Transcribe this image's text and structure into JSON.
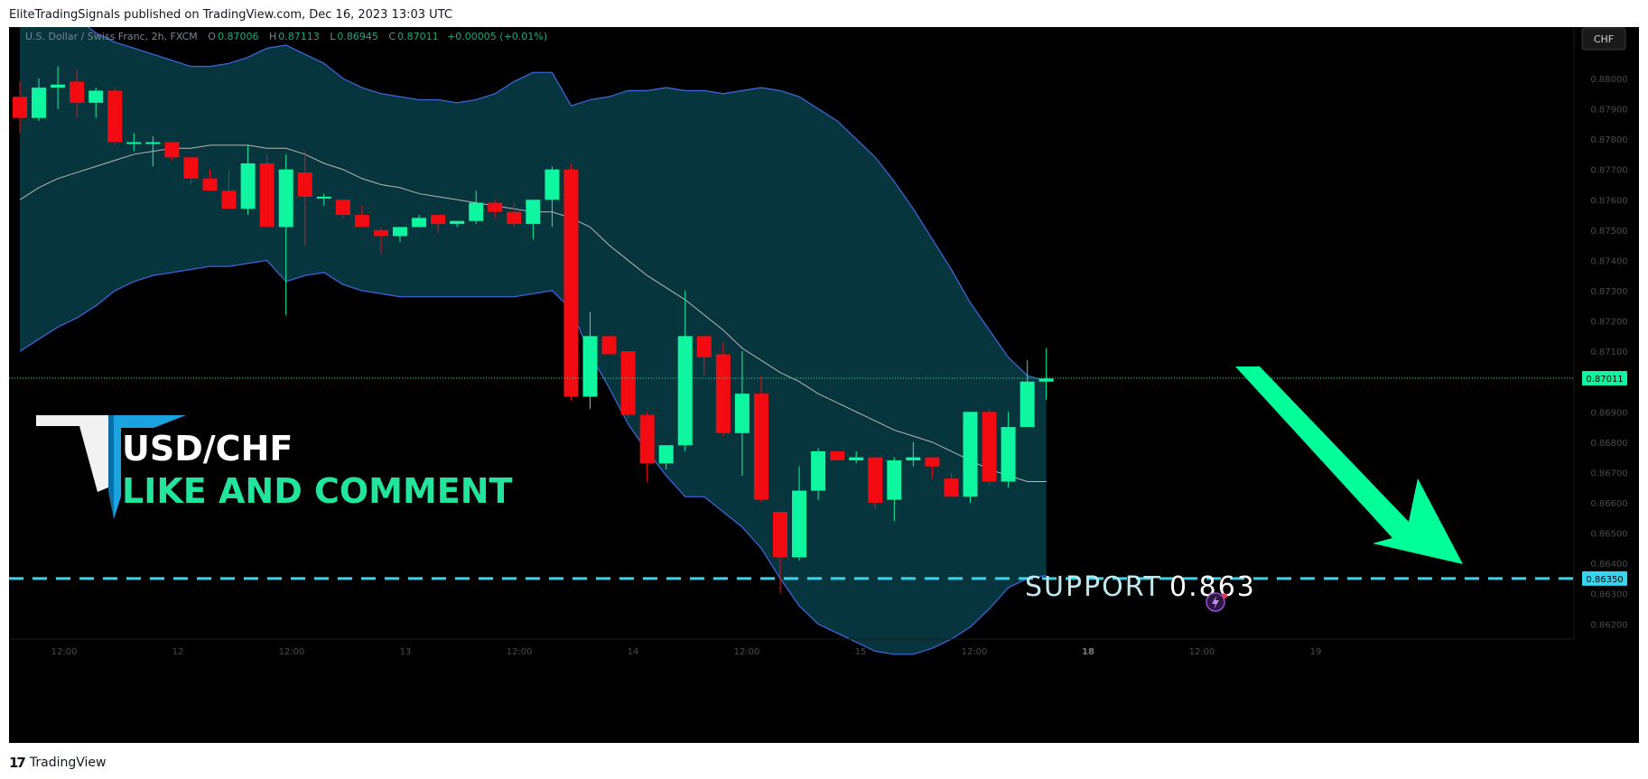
{
  "header": {
    "published": "EliteTradingSignals published on TradingView.com, Dec 16, 2023 13:03 UTC"
  },
  "footer": {
    "logo_mark": "17",
    "brand": "TradingView"
  },
  "colors": {
    "background": "#000000",
    "bull": "#0ef7a0",
    "bear": "#f20c12",
    "band_fill": "#073840",
    "band_line": "#3b64d8",
    "basis_line": "#b8b8b8",
    "support_line": "#34d6f0",
    "arrow": "#00ff99",
    "title_text": "#ffffff",
    "cta_text": "#21e59a"
  },
  "legend": {
    "symbol": "U.S. Dollar / Swiss Franc, 2h, FXCM",
    "o": "0.87006",
    "h": "0.87113",
    "l": "0.86945",
    "c": "0.87011",
    "change": "+0.00005 (+0.01%)"
  },
  "currency_button": "CHF",
  "overlay": {
    "title": "USD/CHF",
    "cta": "LIKE AND COMMENT",
    "support_label": "SUPPORT",
    "support_value": "0.863",
    "logo": "trading-signals-logo"
  },
  "chart_data": {
    "type": "candlestick",
    "yaxis_ticks": [
      "0.88000",
      "0.87900",
      "0.87800",
      "0.87700",
      "0.87600",
      "0.87500",
      "0.87400",
      "0.87300",
      "0.87200",
      "0.87100",
      "0.86900",
      "0.86800",
      "0.86700",
      "0.86600",
      "0.86500",
      "0.86400",
      "0.86300",
      "0.86200"
    ],
    "xaxis_ticks": [
      "12:00",
      "12",
      "12:00",
      "13",
      "12:00",
      "14",
      "12:00",
      "15",
      "12:00",
      "18",
      "12:00",
      "19"
    ],
    "last_price": "0.87011",
    "support_price": "0.86350",
    "ylim": [
      0.8618,
      0.8814
    ],
    "candles": [
      [
        0.8794,
        0.8799,
        0.8782,
        0.8787
      ],
      [
        0.8787,
        0.88,
        0.8786,
        0.8797
      ],
      [
        0.8797,
        0.8804,
        0.879,
        0.8798
      ],
      [
        0.8799,
        0.8803,
        0.8787,
        0.8792
      ],
      [
        0.8792,
        0.8797,
        0.8787,
        0.8796
      ],
      [
        0.8796,
        0.8797,
        0.8778,
        0.8779
      ],
      [
        0.8779,
        0.8782,
        0.8776,
        0.8779
      ],
      [
        0.8779,
        0.8781,
        0.8771,
        0.8779
      ],
      [
        0.8779,
        0.8779,
        0.8773,
        0.8774
      ],
      [
        0.8774,
        0.8774,
        0.8765,
        0.8767
      ],
      [
        0.8767,
        0.877,
        0.8763,
        0.8763
      ],
      [
        0.8763,
        0.877,
        0.8757,
        0.8757
      ],
      [
        0.8757,
        0.8778,
        0.8755,
        0.8772
      ],
      [
        0.8772,
        0.8775,
        0.8751,
        0.8751
      ],
      [
        0.8751,
        0.8775,
        0.8722,
        0.877
      ],
      [
        0.8769,
        0.8776,
        0.8745,
        0.8761
      ],
      [
        0.8761,
        0.8762,
        0.8758,
        0.8761
      ],
      [
        0.876,
        0.876,
        0.8754,
        0.8755
      ],
      [
        0.8755,
        0.8758,
        0.8751,
        0.8751
      ],
      [
        0.875,
        0.8751,
        0.8742,
        0.8748
      ],
      [
        0.8748,
        0.8751,
        0.8746,
        0.8751
      ],
      [
        0.8751,
        0.8755,
        0.8752,
        0.8754
      ],
      [
        0.8755,
        0.8755,
        0.8749,
        0.8752
      ],
      [
        0.8752,
        0.8753,
        0.8751,
        0.8753
      ],
      [
        0.8753,
        0.8763,
        0.8752,
        0.8759
      ],
      [
        0.8759,
        0.876,
        0.8754,
        0.8756
      ],
      [
        0.8756,
        0.8759,
        0.8751,
        0.8752
      ],
      [
        0.8752,
        0.8759,
        0.8747,
        0.876
      ],
      [
        0.876,
        0.8771,
        0.8751,
        0.877
      ],
      [
        0.877,
        0.8772,
        0.8694,
        0.8695
      ],
      [
        0.8695,
        0.8723,
        0.8691,
        0.8715
      ],
      [
        0.8715,
        0.8715,
        0.8709,
        0.8709
      ],
      [
        0.871,
        0.871,
        0.8688,
        0.8689
      ],
      [
        0.8689,
        0.869,
        0.8667,
        0.8673
      ],
      [
        0.8673,
        0.8679,
        0.8671,
        0.8679
      ],
      [
        0.8679,
        0.873,
        0.8677,
        0.8715
      ],
      [
        0.8715,
        0.8715,
        0.8702,
        0.8708
      ],
      [
        0.8709,
        0.8713,
        0.8682,
        0.8683
      ],
      [
        0.8683,
        0.871,
        0.8669,
        0.8696
      ],
      [
        0.8696,
        0.8702,
        0.866,
        0.8661
      ],
      [
        0.8657,
        0.8657,
        0.863,
        0.8642
      ],
      [
        0.8642,
        0.8672,
        0.8641,
        0.8664
      ],
      [
        0.8664,
        0.8678,
        0.8661,
        0.8677
      ],
      [
        0.8677,
        0.8677,
        0.8674,
        0.8674
      ],
      [
        0.8674,
        0.8677,
        0.8673,
        0.8675
      ],
      [
        0.8675,
        0.8675,
        0.8658,
        0.866
      ],
      [
        0.8661,
        0.8675,
        0.8654,
        0.8674
      ],
      [
        0.8674,
        0.868,
        0.8672,
        0.8675
      ],
      [
        0.8675,
        0.8675,
        0.8668,
        0.8672
      ],
      [
        0.8668,
        0.867,
        0.8662,
        0.8662
      ],
      [
        0.8662,
        0.8689,
        0.866,
        0.869
      ],
      [
        0.869,
        0.8691,
        0.8666,
        0.8667
      ],
      [
        0.8667,
        0.869,
        0.8665,
        0.8685
      ],
      [
        0.8685,
        0.8707,
        0.8685,
        0.87
      ],
      [
        0.87,
        0.8711,
        0.8694,
        0.8701
      ]
    ],
    "bollinger": {
      "upper": [
        0.8838,
        0.883,
        0.8825,
        0.882,
        0.8815,
        0.8812,
        0.881,
        0.8808,
        0.8806,
        0.8804,
        0.8804,
        0.8805,
        0.8807,
        0.881,
        0.8811,
        0.8808,
        0.8805,
        0.88,
        0.8797,
        0.8795,
        0.8794,
        0.8793,
        0.8793,
        0.8792,
        0.8793,
        0.8795,
        0.8799,
        0.8802,
        0.8802,
        0.8791,
        0.8793,
        0.8794,
        0.8796,
        0.8796,
        0.8797,
        0.8796,
        0.8796,
        0.8795,
        0.8796,
        0.8797,
        0.8796,
        0.8794,
        0.879,
        0.8786,
        0.878,
        0.8774,
        0.8766,
        0.8757,
        0.8747,
        0.8737,
        0.8726,
        0.8717,
        0.8708,
        0.8702,
        0.87
      ],
      "basis": [
        0.876,
        0.8764,
        0.8767,
        0.8769,
        0.8771,
        0.8773,
        0.8775,
        0.8776,
        0.8777,
        0.8777,
        0.8778,
        0.8778,
        0.8778,
        0.8777,
        0.8777,
        0.8775,
        0.8772,
        0.877,
        0.8767,
        0.8765,
        0.8764,
        0.8762,
        0.8761,
        0.876,
        0.8759,
        0.8758,
        0.8757,
        0.8756,
        0.8756,
        0.8754,
        0.8751,
        0.8745,
        0.874,
        0.8735,
        0.8731,
        0.8727,
        0.8722,
        0.8717,
        0.8711,
        0.8707,
        0.8703,
        0.87,
        0.8696,
        0.8693,
        0.869,
        0.8687,
        0.8684,
        0.8682,
        0.868,
        0.8677,
        0.8674,
        0.8671,
        0.8669,
        0.8667,
        0.8667
      ],
      "lower": [
        0.871,
        0.8714,
        0.8718,
        0.8721,
        0.8725,
        0.873,
        0.8733,
        0.8735,
        0.8736,
        0.8737,
        0.8738,
        0.8738,
        0.8739,
        0.874,
        0.8733,
        0.8735,
        0.8736,
        0.8732,
        0.873,
        0.8729,
        0.8728,
        0.8728,
        0.8728,
        0.8728,
        0.8728,
        0.8728,
        0.8728,
        0.8729,
        0.873,
        0.8724,
        0.8709,
        0.8698,
        0.8686,
        0.8677,
        0.8669,
        0.8662,
        0.8662,
        0.8657,
        0.8652,
        0.8645,
        0.8635,
        0.8626,
        0.862,
        0.8617,
        0.8614,
        0.8611,
        0.861,
        0.861,
        0.8612,
        0.8615,
        0.8619,
        0.8625,
        0.8632,
        0.8635,
        0.8636
      ]
    }
  }
}
